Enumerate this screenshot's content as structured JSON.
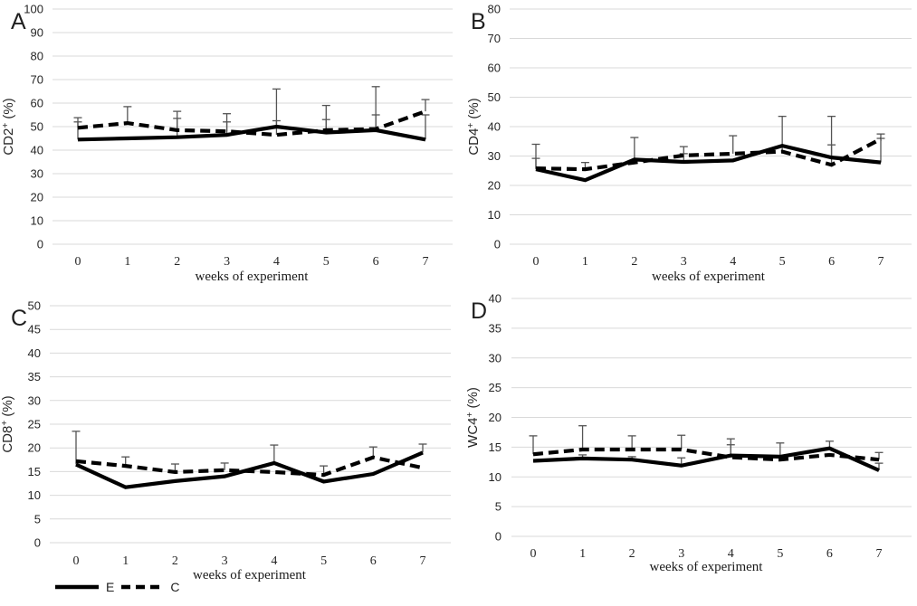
{
  "figure_title": "",
  "legend": {
    "series": [
      {
        "label": "E",
        "style": "solid"
      },
      {
        "label": "C",
        "style": "dashed"
      }
    ]
  },
  "colors": {
    "line": "#000000",
    "grid": "#d9d9d9",
    "tick_text": "#262626",
    "error_bar": "#545454",
    "background": "#ffffff"
  },
  "chart_data": [
    {
      "type": "line",
      "panel_label": "A",
      "ylabel_base": "CD2",
      "ylabel_sup": "+",
      "ylabel_unit": "(%)",
      "xlabel": "weeks of experiment",
      "ylim": [
        0,
        100
      ],
      "yticks": [
        0,
        10,
        20,
        30,
        40,
        50,
        60,
        70,
        80,
        90,
        100
      ],
      "x": [
        0,
        1,
        2,
        3,
        4,
        5,
        6,
        7
      ],
      "grid": true,
      "legend_position": "bottom-left-of-figure",
      "series": [
        {
          "name": "E",
          "dash": false,
          "values": [
            44.5,
            45,
            45.5,
            46.5,
            50,
            47.5,
            48.5,
            44.5
          ],
          "err_top": [
            52,
            null,
            53.5,
            52,
            52.5,
            53,
            55,
            55
          ]
        },
        {
          "name": "C",
          "dash": true,
          "values": [
            49.5,
            51.5,
            48.5,
            48,
            46.5,
            48.5,
            49,
            56.5
          ],
          "err_top": [
            53.8,
            58.5,
            56.5,
            55.5,
            66,
            59,
            67,
            61.5
          ]
        }
      ]
    },
    {
      "type": "line",
      "panel_label": "B",
      "ylabel_base": "CD4",
      "ylabel_sup": "+",
      "ylabel_unit": "(%)",
      "xlabel": "weeks of experiment",
      "ylim": [
        0,
        80
      ],
      "yticks": [
        0,
        10,
        20,
        30,
        40,
        50,
        60,
        70,
        80
      ],
      "x": [
        0,
        1,
        2,
        3,
        4,
        5,
        6,
        7
      ],
      "grid": true,
      "series": [
        {
          "name": "E",
          "dash": false,
          "values": [
            25.5,
            21.8,
            28.8,
            28,
            28.5,
            33.5,
            29.5,
            27.8
          ],
          "err_top": [
            29.2,
            null,
            null,
            30.8,
            null,
            null,
            33.8,
            36
          ]
        },
        {
          "name": "C",
          "dash": true,
          "values": [
            25.8,
            25.5,
            27.8,
            30.2,
            30.8,
            31.5,
            27,
            35.8
          ],
          "err_top": [
            34,
            27.8,
            36.3,
            33.2,
            36.9,
            43.5,
            43.5,
            37.5
          ]
        }
      ]
    },
    {
      "type": "line",
      "panel_label": "C",
      "ylabel_base": "CD8",
      "ylabel_sup": "+",
      "ylabel_unit": "(%)",
      "xlabel": "weeks of experiment",
      "ylim": [
        0,
        50
      ],
      "yticks": [
        0,
        5,
        10,
        15,
        20,
        25,
        30,
        35,
        40,
        45,
        50
      ],
      "x": [
        0,
        1,
        2,
        3,
        4,
        5,
        6,
        7
      ],
      "grid": true,
      "series": [
        {
          "name": "E",
          "dash": false,
          "values": [
            16.5,
            11.7,
            13,
            14,
            16.8,
            12.9,
            14.5,
            19
          ],
          "err_top": [
            23.5,
            null,
            null,
            null,
            20.6,
            null,
            null,
            20.8
          ]
        },
        {
          "name": "C",
          "dash": true,
          "values": [
            17.2,
            16.2,
            14.9,
            15.3,
            14.9,
            14.3,
            18,
            15.8
          ],
          "err_top": [
            null,
            18.1,
            16.6,
            16.8,
            null,
            16.2,
            20.2,
            null
          ]
        }
      ]
    },
    {
      "type": "line",
      "panel_label": "D",
      "ylabel_base": "WC4",
      "ylabel_sup": "+",
      "ylabel_unit": "(%)",
      "xlabel": "weeks of experiment",
      "ylim": [
        0,
        40
      ],
      "yticks": [
        0,
        5,
        10,
        15,
        20,
        25,
        30,
        35,
        40
      ],
      "x": [
        0,
        1,
        2,
        3,
        4,
        5,
        6,
        7
      ],
      "grid": true,
      "series": [
        {
          "name": "E",
          "dash": false,
          "values": [
            12.7,
            13.1,
            12.9,
            11.9,
            13.6,
            13.4,
            14.8,
            11.1
          ],
          "err_top": [
            null,
            13.7,
            13.4,
            13.2,
            15.4,
            15.7,
            16,
            12.3
          ]
        },
        {
          "name": "C",
          "dash": true,
          "values": [
            13.8,
            14.6,
            14.6,
            14.6,
            13.3,
            12.9,
            13.7,
            12.9
          ],
          "err_top": [
            16.9,
            18.6,
            16.9,
            17,
            16.4,
            null,
            null,
            14.1
          ]
        }
      ]
    }
  ]
}
